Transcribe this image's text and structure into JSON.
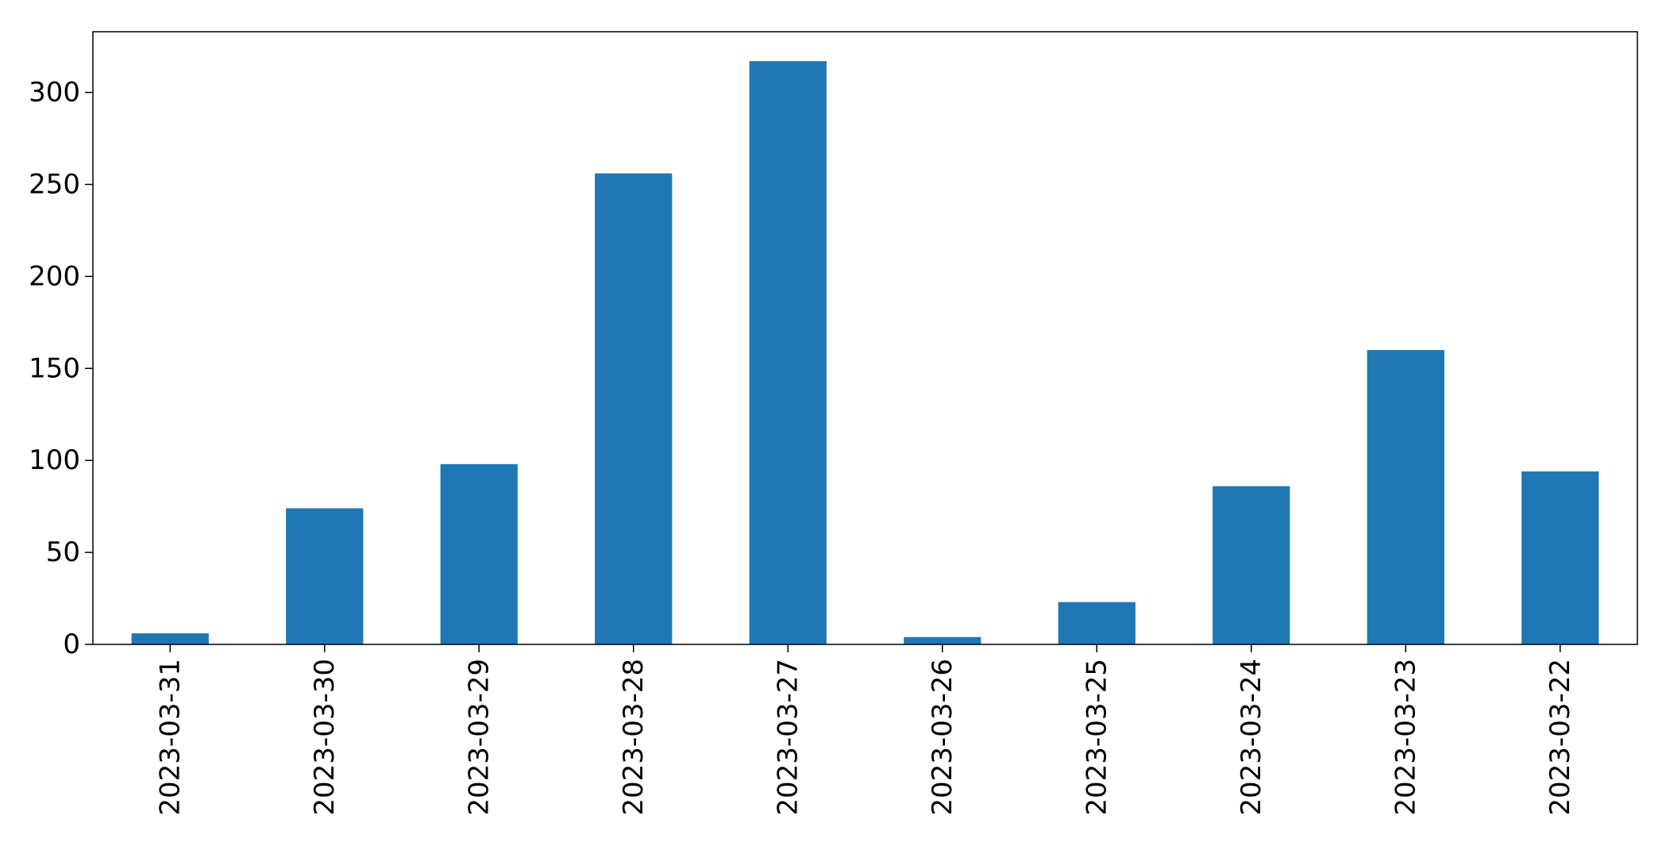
{
  "chart_data": {
    "type": "bar",
    "title": "",
    "xlabel": "",
    "ylabel": "",
    "categories": [
      "2023-03-31",
      "2023-03-30",
      "2023-03-29",
      "2023-03-28",
      "2023-03-27",
      "2023-03-26",
      "2023-03-25",
      "2023-03-24",
      "2023-03-23",
      "2023-03-22"
    ],
    "values": [
      6,
      74,
      98,
      256,
      317,
      4,
      23,
      86,
      160,
      94
    ],
    "ylim": [
      0,
      333
    ],
    "yticks": [
      0,
      50,
      100,
      150,
      200,
      250,
      300
    ],
    "xtick_rotation": "vertical",
    "grid": false,
    "legend": "none",
    "colors": {
      "bar": "#1f77b4",
      "axes": "#000000",
      "background": "#ffffff"
    }
  }
}
